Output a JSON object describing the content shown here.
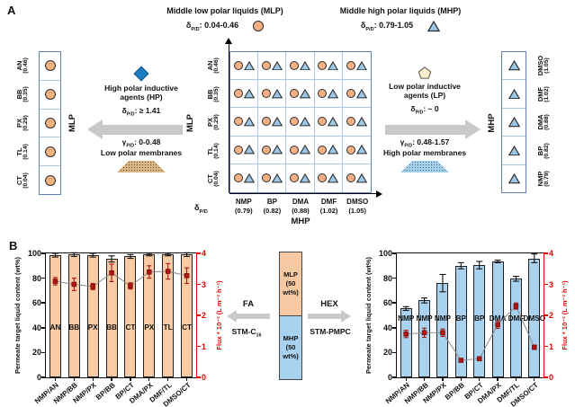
{
  "colors": {
    "mlp_circle": "#F5B183",
    "mhp_triangle": "#9CC7E6",
    "bar_left": "#F7CBA4",
    "bar_right": "#A8D2EF",
    "flux_marker": "#B01411",
    "axis_red": "#E60000",
    "diamond_blue": "#1E7DC0",
    "pentagon_yellow": "#FBF2CB",
    "arrow_gray": "#C9C9C9",
    "membrane_tan": "#D8B584",
    "membrane_blue": "#A6CFEA",
    "box_border_blue": "#5B82B5",
    "grid_line_blue": "#AEC6E8"
  },
  "panelA": {
    "label": "A",
    "legend_mlp": {
      "title": "Middle low polar liquids (MLP)",
      "delta": "δ[P/D]: 0.04-0.46"
    },
    "legend_mhp": {
      "title": "Middle high polar liquids (MHP)",
      "delta": "δ[P/D]: 0.79-1.05"
    },
    "mlp_axis": "MLP",
    "mhp_axis": "MHP",
    "mlp_solvents": [
      {
        "name": "AN",
        "val": "(0.46)"
      },
      {
        "name": "BB",
        "val": "(0.35)"
      },
      {
        "name": "PX",
        "val": "(0.29)"
      },
      {
        "name": "TL",
        "val": "(0.14)"
      },
      {
        "name": "CT",
        "val": "(0.04)"
      }
    ],
    "mhp_solvents": [
      {
        "name": "DMSO",
        "val": "(1.05)"
      },
      {
        "name": "DMF",
        "val": "(1.02)"
      },
      {
        "name": "DMA",
        "val": "(0.88)"
      },
      {
        "name": "BP",
        "val": "(0.82)"
      },
      {
        "name": "NMP",
        "val": "(0.79)"
      }
    ],
    "grid": {
      "rows": [
        {
          "name": "AN",
          "val": "(0.46)"
        },
        {
          "name": "BB",
          "val": "(0.35)"
        },
        {
          "name": "PX",
          "val": "(0.29)"
        },
        {
          "name": "TL",
          "val": "(0.14)"
        },
        {
          "name": "CT",
          "val": "(0.04)"
        }
      ],
      "cols": [
        {
          "name": "NMP",
          "val": "(0.79)"
        },
        {
          "name": "BP",
          "val": "(0.82)"
        },
        {
          "name": "DMA",
          "val": "(0.88)"
        },
        {
          "name": "DMF",
          "val": "(1.02)"
        },
        {
          "name": "DMSO",
          "val": "(1.05)"
        }
      ],
      "ylabel": "MLP",
      "xlabel": "MHP",
      "corner": "δ[P/D]"
    },
    "hp": {
      "line1": "High polar inductive",
      "line2": "agents (HP)",
      "delta": "δ[P/D]: ≥ 1.41",
      "gamma": "γ[P/D]: 0-0.48",
      "membrane": "Low polar membranes"
    },
    "lp": {
      "line1": "Low polar inductive",
      "line2": "agents (LP)",
      "delta": "δ[P/D]: ~ 0",
      "gamma": "γ[P/D]: 0.48-1.57",
      "membrane": "High polar membranes"
    }
  },
  "panelB": {
    "label": "B",
    "feed": {
      "top": "MLP\n(50\nwt%)",
      "bottom": "MHP\n(50\nwt%)"
    },
    "fa": {
      "label": "FA",
      "membrane": "STM-C[16]"
    },
    "hex": {
      "label": "HEX",
      "membrane": "STM-PMPC"
    }
  },
  "chart_data": [
    {
      "type": "bar",
      "position": "left",
      "categories": [
        "NMP/AN",
        "NMP/BB",
        "NMP/PX",
        "BP/BB",
        "BP/CT",
        "DMA/PX",
        "DMF/TL",
        "DMSO/CT"
      ],
      "bars": {
        "color": "#F7CBA4",
        "values": [
          98.5,
          99,
          98.5,
          95.5,
          97.5,
          99,
          99,
          99
        ],
        "errors": [
          1.5,
          1.5,
          1.5,
          2.5,
          1.5,
          1,
          1,
          1.5
        ],
        "inner_labels": [
          "AN",
          "BB",
          "PX",
          "BB",
          "CT",
          "PX",
          "TL",
          "CT"
        ],
        "inner_label_y": 40
      },
      "line": {
        "color": "#B01411",
        "values": [
          3.1,
          3.0,
          2.93,
          3.37,
          2.95,
          3.4,
          3.42,
          3.28
        ],
        "errors": [
          0.12,
          0.2,
          0.1,
          0.28,
          0.1,
          0.2,
          0.25,
          0.25
        ]
      },
      "ylabel": "Permeate target liquid content (wt%)",
      "ylim": [
        0,
        100
      ],
      "yticks": [
        0,
        20,
        40,
        60,
        80,
        100
      ],
      "y2label": "Flux * 10⁻² (L m⁻² h⁻¹)",
      "y2lim": [
        0,
        4
      ],
      "y2ticks": [
        0,
        1,
        2,
        3,
        4
      ],
      "grid": false,
      "legend": "none"
    },
    {
      "type": "bar",
      "position": "right",
      "categories": [
        "NMP/AN",
        "NMP/BB",
        "NMP/PX",
        "BP/BB",
        "BP/CT",
        "DMA/PX",
        "DMF/TL",
        "DMSO/CT"
      ],
      "bars": {
        "color": "#A8D2EF",
        "values": [
          55.5,
          62,
          76,
          90,
          90.5,
          93.5,
          79.5,
          96
        ],
        "errors": [
          1.5,
          2,
          7,
          2.5,
          3,
          1,
          2,
          3.5
        ],
        "inner_labels": [
          "NMP",
          "NMP",
          "NMP",
          "BP",
          "BP",
          "DMA",
          "DMF",
          "DMSO"
        ],
        "inner_label_y": 47
      },
      "line": {
        "color": "#B01411",
        "values": [
          1.4,
          1.44,
          1.44,
          0.55,
          0.6,
          1.7,
          2.3,
          0.97
        ],
        "errors": [
          0.12,
          0.15,
          0.12,
          0.05,
          0.05,
          0.12,
          0.1,
          0.07
        ]
      },
      "ylabel": "Permeate target liquid content (wt%)",
      "ylim": [
        0,
        100
      ],
      "yticks": [
        0,
        20,
        40,
        60,
        80,
        100
      ],
      "y2label": "Flux * 10⁻² (L m⁻² h⁻¹)",
      "y2lim": [
        0,
        4
      ],
      "y2ticks": [
        0,
        1,
        2,
        3,
        4
      ],
      "grid": false,
      "legend": "none"
    }
  ]
}
